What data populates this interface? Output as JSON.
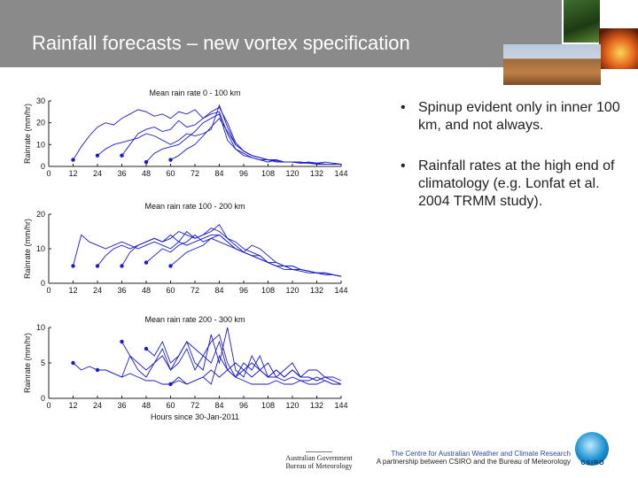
{
  "title": "Rainfall forecasts – new vortex specification",
  "bullets": [
    "Spinup evident only in inner 100 km, and not always.",
    "Rainfall rates at the high end of climatology (e.g. Lonfat et al. 2004 TRMM study)."
  ],
  "footer": {
    "gov_line1": "Australian Government",
    "gov_line2": "Bureau of Meteorology",
    "cawcr_line1": "The Centre for Australian Weather and Climate Research",
    "cawcr_line2": "A partnership between CSIRO and the Bureau of Meteorology",
    "csiro": "CSIRO"
  },
  "colors": {
    "header": "#8a8a8a",
    "series": "#1a1acc",
    "text": "#222222"
  },
  "chart_data": [
    {
      "type": "line",
      "title": "Mean rain rate 0 - 100 km",
      "xlabel": "",
      "ylabel": "Rainrate (mm/hr)",
      "xlim": [
        0,
        144
      ],
      "ylim": [
        0,
        30
      ],
      "xticks": [
        0,
        12,
        24,
        36,
        48,
        60,
        72,
        84,
        96,
        108,
        120,
        132,
        144
      ],
      "yticks": [
        0,
        10,
        20,
        30
      ],
      "series": [
        {
          "x": [
            12,
            16,
            20,
            24,
            28,
            32,
            36,
            40,
            44,
            48,
            52,
            56,
            60,
            64,
            68,
            72,
            76,
            80,
            84,
            88,
            92,
            96,
            100,
            104,
            108,
            112,
            116,
            120,
            124,
            128,
            132,
            136,
            140,
            144
          ],
          "y": [
            3,
            9,
            14,
            18,
            20,
            19,
            22,
            24,
            26,
            25,
            23,
            24,
            22,
            25,
            24,
            26,
            22,
            24,
            25,
            15,
            8,
            6,
            4,
            3,
            2,
            3,
            2,
            2,
            1.5,
            2,
            1.5,
            2,
            1.5,
            1
          ]
        },
        {
          "x": [
            24,
            28,
            32,
            36,
            40,
            44,
            48,
            52,
            56,
            60,
            64,
            68,
            72,
            76,
            80,
            84,
            88,
            92,
            96,
            100,
            104,
            108,
            112,
            116,
            120,
            124,
            128,
            132,
            136,
            140,
            144
          ],
          "y": [
            5,
            8,
            10,
            11,
            12,
            13,
            15,
            14,
            12,
            10,
            12,
            15,
            14,
            15,
            17,
            28,
            18,
            10,
            7,
            5,
            4,
            3,
            3,
            2,
            2,
            2,
            1.5,
            1.5,
            1,
            1,
            1
          ]
        },
        {
          "x": [
            36,
            40,
            44,
            48,
            52,
            56,
            60,
            64,
            68,
            72,
            76,
            80,
            84,
            88,
            92,
            96,
            100,
            104,
            108,
            112,
            116,
            120,
            124,
            128,
            132,
            136,
            140,
            144
          ],
          "y": [
            5,
            10,
            15,
            17,
            18,
            16,
            17,
            21,
            18,
            19,
            22,
            25,
            27,
            20,
            11,
            7,
            5,
            4,
            3,
            2.5,
            2,
            2,
            1.5,
            2,
            1.5,
            1,
            1,
            1
          ]
        },
        {
          "x": [
            48,
            52,
            56,
            60,
            64,
            68,
            72,
            76,
            80,
            84,
            88,
            92,
            96,
            100,
            104,
            108,
            112,
            116,
            120,
            124,
            128,
            132,
            136,
            140,
            144
          ],
          "y": [
            2,
            6,
            8,
            9,
            10,
            13,
            16,
            20,
            22,
            24,
            12,
            8,
            5,
            4,
            3,
            3,
            2,
            2,
            2,
            1.5,
            1.5,
            1,
            1,
            1,
            1
          ]
        },
        {
          "x": [
            60,
            64,
            68,
            72,
            76,
            80,
            84,
            88,
            92,
            96,
            100,
            104,
            108,
            112,
            116,
            120,
            124,
            128,
            132,
            136,
            140,
            144
          ],
          "y": [
            3,
            5,
            8,
            10,
            14,
            18,
            22,
            16,
            10,
            7,
            5,
            4,
            3,
            3,
            2,
            2,
            2,
            1.5,
            1.5,
            1,
            1,
            1
          ]
        }
      ],
      "markers": [
        {
          "x": 12,
          "y": 3
        },
        {
          "x": 24,
          "y": 5
        },
        {
          "x": 36,
          "y": 5
        },
        {
          "x": 48,
          "y": 2
        },
        {
          "x": 60,
          "y": 3
        }
      ]
    },
    {
      "type": "line",
      "title": "Mean rain rate 100 - 200 km",
      "xlabel": "",
      "ylabel": "Rainrate (mm/hr)",
      "xlim": [
        0,
        144
      ],
      "ylim": [
        0,
        20
      ],
      "xticks": [
        0,
        12,
        24,
        36,
        48,
        60,
        72,
        84,
        96,
        108,
        120,
        132,
        144
      ],
      "yticks": [
        0,
        10,
        20
      ],
      "series": [
        {
          "x": [
            12,
            16,
            20,
            24,
            28,
            32,
            36,
            40,
            44,
            48,
            52,
            56,
            60,
            64,
            68,
            72,
            76,
            80,
            84,
            88,
            92,
            96,
            100,
            104,
            108,
            112,
            116,
            120,
            124,
            128,
            132,
            136,
            140,
            144
          ],
          "y": [
            5,
            14,
            12,
            11,
            10,
            11,
            12,
            11,
            10,
            11,
            12,
            11,
            10,
            12,
            11,
            12,
            13,
            14,
            14,
            12,
            10,
            9,
            8,
            8,
            6,
            6,
            5,
            5,
            4,
            3.5,
            3,
            3,
            2.5,
            2
          ]
        },
        {
          "x": [
            24,
            28,
            32,
            36,
            40,
            44,
            48,
            52,
            56,
            60,
            64,
            68,
            72,
            76,
            80,
            84,
            88,
            92,
            96,
            100,
            104,
            108,
            112,
            116,
            120,
            124,
            128,
            132,
            136,
            140,
            144
          ],
          "y": [
            5,
            8,
            10,
            11,
            10,
            11,
            12,
            13,
            12,
            14,
            12,
            15,
            13,
            14,
            16,
            15,
            13,
            12,
            10,
            9,
            8,
            6,
            5,
            4,
            4,
            3.5,
            3,
            3,
            2.5,
            2.5,
            2
          ]
        },
        {
          "x": [
            36,
            40,
            44,
            48,
            52,
            56,
            60,
            64,
            68,
            72,
            76,
            80,
            84,
            88,
            92,
            96,
            100,
            104,
            108,
            112,
            116,
            120,
            124,
            128,
            132,
            136,
            140,
            144
          ],
          "y": [
            5,
            9,
            11,
            12,
            13,
            12,
            13,
            15,
            14,
            13,
            14,
            15,
            17,
            13,
            11,
            9,
            8,
            7,
            6,
            5,
            5,
            4,
            4,
            3.5,
            3,
            3,
            2.5,
            2
          ]
        },
        {
          "x": [
            48,
            52,
            56,
            60,
            64,
            68,
            72,
            76,
            80,
            84,
            88,
            92,
            96,
            100,
            104,
            108,
            112,
            116,
            120,
            124,
            128,
            132,
            136,
            140,
            144
          ],
          "y": [
            6,
            8,
            10,
            9,
            11,
            12,
            14,
            12,
            13,
            14,
            12,
            10,
            9,
            11,
            10,
            8,
            6,
            5,
            5,
            4,
            3.5,
            3,
            3,
            2.5,
            2
          ]
        },
        {
          "x": [
            60,
            64,
            68,
            72,
            76,
            80,
            84,
            88,
            92,
            96,
            100,
            104,
            108,
            112,
            116,
            120,
            124,
            128,
            132,
            136,
            140,
            144
          ],
          "y": [
            5,
            7,
            9,
            10,
            11,
            13,
            12,
            11,
            10,
            9,
            8,
            7,
            6,
            5,
            5,
            4,
            4,
            3.5,
            3,
            2.5,
            2.5,
            2
          ]
        }
      ],
      "markers": [
        {
          "x": 12,
          "y": 5
        },
        {
          "x": 24,
          "y": 5
        },
        {
          "x": 36,
          "y": 5
        },
        {
          "x": 48,
          "y": 6
        },
        {
          "x": 60,
          "y": 5
        }
      ]
    },
    {
      "type": "line",
      "title": "Mean rain rate 200 - 300 km",
      "xlabel": "Hours since 30-Jan-2011",
      "ylabel": "Rainrate (mm/hr)",
      "xlim": [
        0,
        144
      ],
      "ylim": [
        0,
        10
      ],
      "xticks": [
        0,
        12,
        24,
        36,
        48,
        60,
        72,
        84,
        96,
        108,
        120,
        132,
        144
      ],
      "yticks": [
        0,
        5,
        10
      ],
      "series": [
        {
          "x": [
            12,
            16,
            20,
            24,
            28,
            32,
            36,
            40,
            44,
            48,
            52,
            56,
            60,
            64,
            68,
            72,
            76,
            80,
            84,
            88,
            92,
            96,
            100,
            104,
            108,
            112,
            116,
            120,
            124,
            128,
            132,
            136,
            140,
            144
          ],
          "y": [
            5,
            4,
            4.5,
            4,
            4,
            3.5,
            3,
            3.5,
            3,
            2.5,
            2.5,
            2,
            2,
            2.5,
            2,
            2.5,
            3,
            2,
            6,
            4,
            3,
            2.5,
            2,
            2,
            2,
            2.5,
            2,
            2,
            2.5,
            2,
            2,
            2.5,
            2,
            2
          ]
        },
        {
          "x": [
            24,
            28,
            32,
            36,
            40,
            44,
            48,
            52,
            56,
            60,
            64,
            68,
            72,
            76,
            80,
            84,
            88,
            92,
            96,
            100,
            104,
            108,
            112,
            116,
            120,
            124,
            128,
            132,
            136,
            140,
            144
          ],
          "y": [
            4,
            4,
            3.5,
            3,
            6,
            4,
            3,
            5,
            7,
            4,
            6,
            8,
            5,
            4,
            9,
            5,
            10,
            4,
            3,
            6,
            4,
            5,
            3,
            4,
            5,
            3,
            4,
            4,
            3,
            3,
            2.5
          ]
        },
        {
          "x": [
            36,
            40,
            44,
            48,
            52,
            56,
            60,
            64,
            68,
            72,
            76,
            80,
            84,
            88,
            92,
            96,
            100,
            104,
            108,
            112,
            116,
            120,
            124,
            128,
            132,
            136,
            140,
            144
          ],
          "y": [
            8,
            6,
            5,
            4,
            5,
            6,
            4,
            5,
            7,
            4,
            6,
            5,
            8,
            4,
            3,
            5,
            4,
            6,
            3,
            4,
            3,
            4,
            3,
            3,
            2.5,
            3,
            2.5,
            2
          ]
        },
        {
          "x": [
            48,
            52,
            56,
            60,
            64,
            68,
            72,
            76,
            80,
            84,
            88,
            92,
            96,
            100,
            104,
            108,
            112,
            116,
            120,
            124,
            128,
            132,
            136,
            140,
            144
          ],
          "y": [
            7,
            6,
            8,
            5,
            6,
            8,
            7,
            6,
            8,
            9,
            5,
            3,
            4,
            5,
            4,
            3,
            4,
            3,
            4,
            3,
            3,
            2.5,
            3,
            2.5,
            2
          ]
        },
        {
          "x": [
            60,
            64,
            68,
            72,
            76,
            80,
            84,
            88,
            92,
            96,
            100,
            104,
            108,
            112,
            116,
            120,
            124,
            128,
            132,
            136,
            140,
            144
          ],
          "y": [
            2,
            3,
            2,
            2.5,
            3,
            4,
            3,
            4,
            5,
            4,
            3,
            4,
            3,
            3,
            2.5,
            3,
            2.5,
            2.5,
            3,
            2.5,
            2,
            2
          ]
        }
      ],
      "markers": [
        {
          "x": 12,
          "y": 5
        },
        {
          "x": 24,
          "y": 4
        },
        {
          "x": 36,
          "y": 8
        },
        {
          "x": 48,
          "y": 7
        },
        {
          "x": 60,
          "y": 2
        }
      ]
    }
  ]
}
